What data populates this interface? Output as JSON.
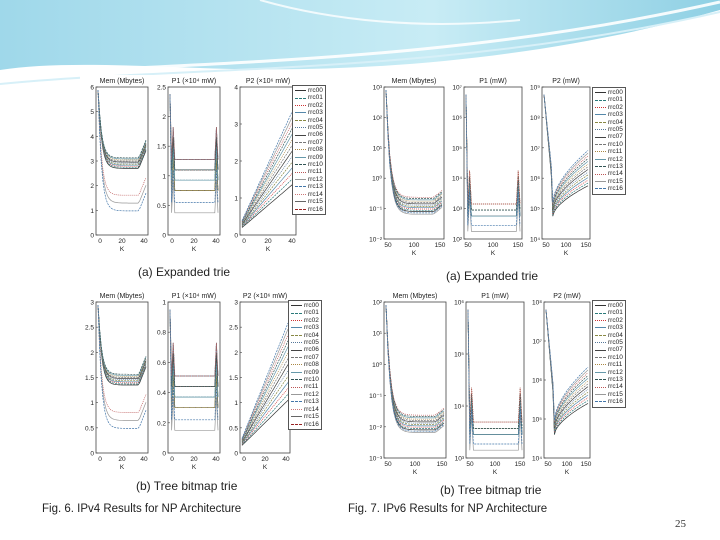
{
  "page_number": "25",
  "legend_ipv4_a": [
    "rrc00",
    "rrc01",
    "rrc02",
    "rrc03",
    "rrc04",
    "rrc05",
    "rrc06",
    "rrc07",
    "rrc08",
    "rrc09",
    "rrc10",
    "rrc11",
    "rrc12",
    "rrc13",
    "rrc14",
    "rrc15",
    "rrc16"
  ],
  "legend_ipv4_b": [
    "rrc00",
    "rrc01",
    "rrc02",
    "rrc03",
    "rrc04",
    "rrc05",
    "rrc06",
    "rrc07",
    "rrc08",
    "rrc09",
    "rrc10",
    "rrc11",
    "rrc12",
    "rrc13",
    "rrc14",
    "rrc15",
    "rrc16"
  ],
  "legend_ipv6": [
    "rrc00",
    "rrc01",
    "rrc02",
    "rrc03",
    "rrc04",
    "rrc05",
    "rrc07",
    "rrc10",
    "rrc11",
    "rrc12",
    "rrc13",
    "rrc14",
    "rrc15",
    "rrc16"
  ],
  "series_colors": [
    "#333333",
    "#2a7a7a",
    "#cc3333",
    "#5588aa",
    "#888844",
    "#557799",
    "#444444",
    "#777777",
    "#aa8844",
    "#6699aa",
    "#335555",
    "#bb5555",
    "#999999",
    "#4477aa",
    "#cc7777",
    "#666666",
    "#992222"
  ],
  "fig6": {
    "caption": "Fig. 6.  IPv4 Results for NP Architecture",
    "a": {
      "subcaption": "(a) Expanded trie",
      "panels": [
        {
          "title": "Mem (Mbytes)",
          "ylabels": [
            "6",
            "5",
            "4",
            "3",
            "2",
            "1",
            "0"
          ],
          "xlabels": [
            "0",
            "20",
            "40"
          ],
          "xlabel": "K"
        },
        {
          "title": "P1 (×10⁴ mW)",
          "ylabels": [
            "2.5",
            "2",
            "1.5",
            "1",
            "0.5",
            "0"
          ],
          "xlabels": [
            "0",
            "20",
            "40"
          ],
          "xlabel": "K"
        },
        {
          "title": "P2 (×10⁶ mW)",
          "ylabels": [
            "4",
            "3",
            "2",
            "1",
            "0"
          ],
          "xlabels": [
            "0",
            "20",
            "40"
          ],
          "xlabel": "K"
        }
      ]
    },
    "b": {
      "subcaption": "(b) Tree bitmap trie",
      "panels": [
        {
          "title": "Mem (Mbytes)",
          "ylabels": [
            "3",
            "2.5",
            "2",
            "1.5",
            "1",
            "0.5",
            "0"
          ],
          "xlabels": [
            "0",
            "20",
            "40"
          ],
          "xlabel": "K"
        },
        {
          "title": "P1 (×10⁴ mW)",
          "ylabels": [
            "1",
            "0.8",
            "0.6",
            "0.4",
            "0.2",
            "0"
          ],
          "xlabels": [
            "0",
            "20",
            "40"
          ],
          "xlabel": "K"
        },
        {
          "title": "P2 (×10⁶ mW)",
          "ylabels": [
            "3",
            "2.5",
            "2",
            "1.5",
            "1",
            "0.5",
            "0"
          ],
          "xlabels": [
            "0",
            "20",
            "40"
          ],
          "xlabel": "K"
        }
      ]
    }
  },
  "fig7": {
    "caption": "Fig. 7.  IPv6 Results for NP Architecture",
    "a": {
      "subcaption": "(a) Expanded trie",
      "panels": [
        {
          "title": "Mem (Mbytes)",
          "ylabels": [
            "10³",
            "10²",
            "10¹",
            "10⁰",
            "10⁻¹",
            "10⁻²"
          ],
          "xlabels": [
            "50",
            "100",
            "150"
          ],
          "xlabel": "K"
        },
        {
          "title": "P1 (mW)",
          "ylabels": [
            "10⁷",
            "10⁶",
            "10⁵",
            "10⁴",
            "10³",
            "10²"
          ],
          "xlabels": [
            "50",
            "100",
            "150"
          ],
          "xlabel": "K"
        },
        {
          "title": "P2 (mW)",
          "ylabels": [
            "10⁹",
            "10⁸",
            "10⁷",
            "10⁶",
            "10⁵",
            "10⁴"
          ],
          "xlabels": [
            "50",
            "100",
            "150"
          ],
          "xlabel": "K"
        }
      ]
    },
    "b": {
      "subcaption": "(b) Tree bitmap trie",
      "panels": [
        {
          "title": "Mem (Mbytes)",
          "ylabels": [
            "10²",
            "10¹",
            "10⁰",
            "10⁻¹",
            "10⁻²",
            "10⁻³"
          ],
          "xlabels": [
            "50",
            "100",
            "150"
          ],
          "xlabel": "K"
        },
        {
          "title": "P1 (mW)",
          "ylabels": [
            "10⁶",
            "10⁵",
            "10⁴",
            "10³"
          ],
          "xlabels": [
            "50",
            "100",
            "150"
          ],
          "xlabel": "K"
        },
        {
          "title": "P2 (mW)",
          "ylabels": [
            "10⁸",
            "10⁷",
            "10⁶",
            "10⁵",
            "10⁴"
          ],
          "xlabels": [
            "50",
            "100",
            "150"
          ],
          "xlabel": "K"
        }
      ]
    }
  }
}
